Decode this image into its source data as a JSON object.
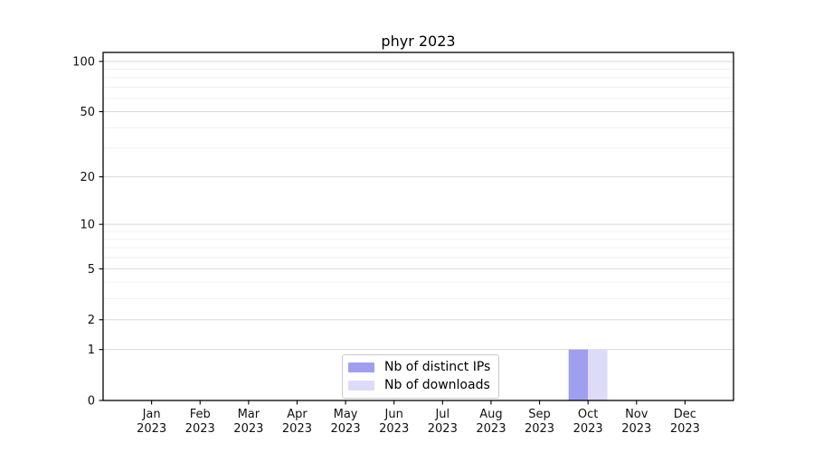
{
  "chart_data": {
    "type": "bar",
    "title": "phyr 2023",
    "categories": [
      "Jan",
      "Feb",
      "Mar",
      "Apr",
      "May",
      "Jun",
      "Jul",
      "Aug",
      "Sep",
      "Oct",
      "Nov",
      "Dec"
    ],
    "year_label": "2023",
    "series": [
      {
        "name": "Nb of distinct IPs",
        "color": "#9f9ff0",
        "values": [
          0,
          0,
          0,
          0,
          0,
          0,
          0,
          0,
          0,
          1,
          0,
          0
        ]
      },
      {
        "name": "Nb of downloads",
        "color": "#dcdcf8",
        "values": [
          0,
          0,
          0,
          0,
          0,
          0,
          0,
          0,
          0,
          1,
          0,
          0
        ]
      }
    ],
    "y_ticks": [
      0,
      1,
      2,
      5,
      10,
      20,
      50,
      100
    ],
    "y_scale": "log10(1+x)",
    "ylim": [
      0,
      113
    ],
    "grid": true,
    "legend_position": "lower center",
    "colors": {
      "axis": "#000000",
      "tick_label": "#111111",
      "gridline_major": "#d9d9d9",
      "gridline_minor": "#efefef",
      "background": "#ffffff"
    }
  }
}
